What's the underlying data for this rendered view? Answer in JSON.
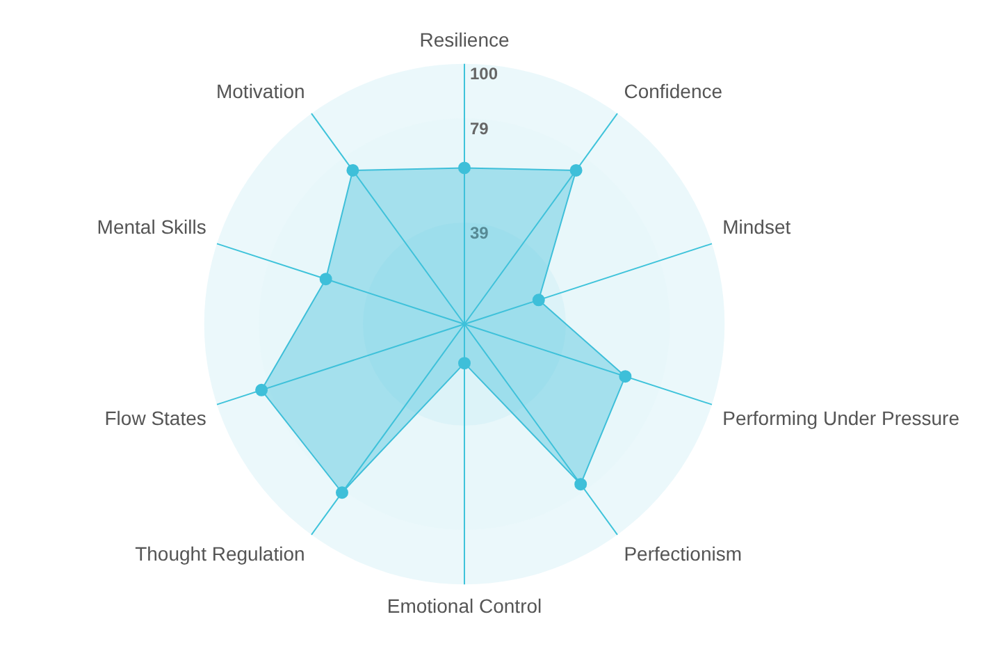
{
  "chart_data": {
    "type": "radar",
    "categories": [
      "Resilience",
      "Confidence",
      "Mindset",
      "Performing Under Pressure",
      "Perfectionism",
      "Emotional Control",
      "Thought Regulation",
      "Flow States",
      "Mental Skills",
      "Motivation"
    ],
    "series": [
      {
        "color": "#3ebfd9",
        "values": [
          60,
          73,
          30,
          65,
          76,
          15,
          80,
          82,
          56,
          73
        ]
      }
    ],
    "ylim": [
      0,
      100
    ],
    "yticks": [
      {
        "value": 39,
        "label": "39"
      },
      {
        "value": 79,
        "label": "79"
      },
      {
        "value": 100,
        "label": "100"
      }
    ],
    "grid": true,
    "legend": false,
    "marker": "circle"
  }
}
